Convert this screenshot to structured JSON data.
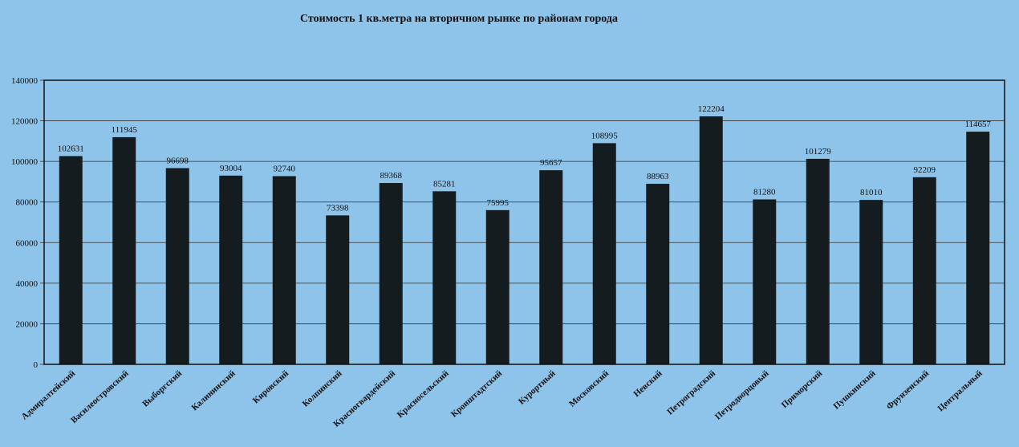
{
  "chart_data": {
    "type": "bar",
    "title": "Стоимость 1 кв.метра на вторичном  рынке  по районам  города",
    "xlabel": "",
    "ylabel": "",
    "ylim": [
      0,
      140000
    ],
    "yticks": [
      0,
      20000,
      40000,
      60000,
      80000,
      100000,
      120000,
      140000
    ],
    "grid": true,
    "colors": {
      "bar": "#151c1f",
      "background": "#8ec3ea"
    },
    "categories": [
      "Адмиралтейский",
      "Василеостровский",
      "Выборгский",
      "Калининский",
      "Кировский",
      "Колпинский",
      "Красногвардейский",
      "Красносельский",
      "Кронштадтский",
      "Курортный",
      "Московский",
      "Невский",
      "Петроградский",
      "Петродворцовый",
      "Приморский",
      "Пушкинский",
      "Фрунзенский",
      "Центральный"
    ],
    "values": [
      102631,
      111945,
      96698,
      93004,
      92740,
      73398,
      89368,
      85281,
      75995,
      95657,
      108995,
      88963,
      122204,
      81280,
      101279,
      81010,
      92209,
      114657
    ]
  }
}
